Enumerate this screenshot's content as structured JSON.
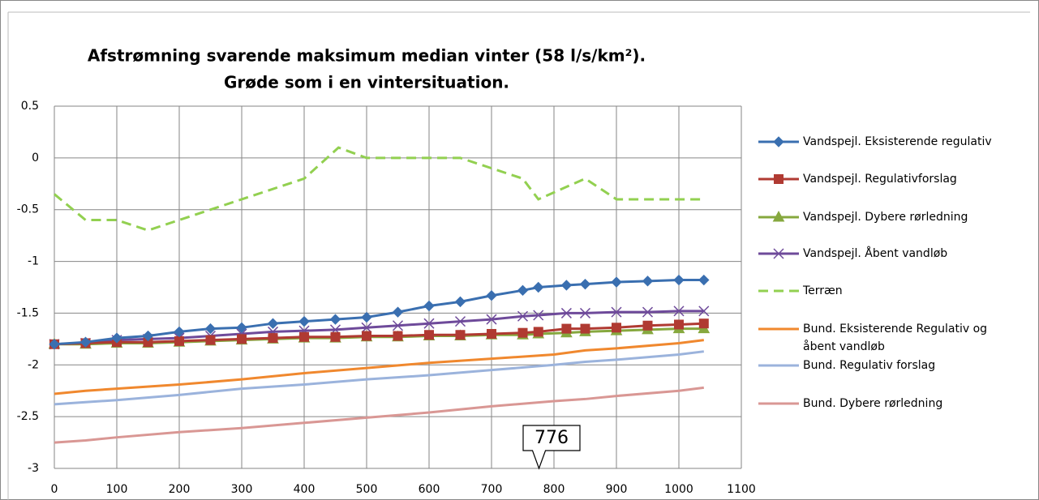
{
  "chart_data": {
    "type": "line",
    "title": [
      "Afstrømning svarende maksimum median vinter (58 l/s/km²).",
      "Grøde som i en vintersituation."
    ],
    "xlim": [
      0,
      1100
    ],
    "xticks": [
      0,
      100,
      200,
      300,
      400,
      500,
      600,
      700,
      800,
      900,
      1000,
      1100
    ],
    "ylim": [
      -3,
      0.5
    ],
    "yticks": [
      0.5,
      0,
      -0.5,
      -1,
      -1.5,
      -2,
      -2.5,
      -3
    ],
    "grid": true,
    "legend": "right",
    "callout": 776,
    "series": [
      {
        "name": "Vandspejl. Eksisterende regulativ",
        "color": "#3a6fb0",
        "marker": "diamond",
        "dash": false,
        "x": [
          0,
          50,
          100,
          150,
          200,
          250,
          300,
          350,
          400,
          450,
          500,
          550,
          600,
          650,
          700,
          750,
          775,
          820,
          850,
          900,
          950,
          1000,
          1040
        ],
        "values": [
          -1.8,
          -1.78,
          -1.74,
          -1.72,
          -1.68,
          -1.65,
          -1.64,
          -1.6,
          -1.58,
          -1.56,
          -1.54,
          -1.49,
          -1.43,
          -1.39,
          -1.33,
          -1.28,
          -1.25,
          -1.23,
          -1.22,
          -1.2,
          -1.19,
          -1.18,
          -1.18
        ]
      },
      {
        "name": "Vandspejl. Regulativforslag",
        "color": "#b03a32",
        "marker": "square",
        "dash": false,
        "x": [
          0,
          50,
          100,
          150,
          200,
          250,
          300,
          350,
          400,
          450,
          500,
          550,
          600,
          650,
          700,
          750,
          775,
          820,
          850,
          900,
          950,
          1000,
          1040
        ],
        "values": [
          -1.8,
          -1.79,
          -1.78,
          -1.78,
          -1.77,
          -1.76,
          -1.75,
          -1.74,
          -1.73,
          -1.73,
          -1.72,
          -1.72,
          -1.71,
          -1.71,
          -1.7,
          -1.69,
          -1.68,
          -1.65,
          -1.65,
          -1.64,
          -1.62,
          -1.61,
          -1.6
        ]
      },
      {
        "name": "Vandspejl. Dybere rørledning",
        "color": "#86a83e",
        "marker": "triangle",
        "dash": false,
        "x": [
          0,
          50,
          100,
          150,
          200,
          250,
          300,
          350,
          400,
          450,
          500,
          550,
          600,
          650,
          700,
          750,
          775,
          820,
          850,
          900,
          950,
          1000,
          1040
        ],
        "values": [
          -1.8,
          -1.8,
          -1.79,
          -1.79,
          -1.78,
          -1.77,
          -1.76,
          -1.75,
          -1.74,
          -1.74,
          -1.73,
          -1.73,
          -1.72,
          -1.72,
          -1.71,
          -1.71,
          -1.7,
          -1.69,
          -1.68,
          -1.67,
          -1.66,
          -1.65,
          -1.65
        ]
      },
      {
        "name": "Vandspejl. Åbent vandløb",
        "color": "#6e4a9a",
        "marker": "x",
        "dash": false,
        "x": [
          0,
          50,
          100,
          150,
          200,
          250,
          300,
          350,
          400,
          450,
          500,
          550,
          600,
          650,
          700,
          750,
          775,
          820,
          850,
          900,
          950,
          1000,
          1040
        ],
        "values": [
          -1.8,
          -1.79,
          -1.76,
          -1.75,
          -1.74,
          -1.72,
          -1.7,
          -1.68,
          -1.67,
          -1.66,
          -1.64,
          -1.62,
          -1.6,
          -1.58,
          -1.56,
          -1.53,
          -1.52,
          -1.5,
          -1.5,
          -1.49,
          -1.49,
          -1.48,
          -1.48
        ]
      },
      {
        "name": "Terræn",
        "color": "#92d050",
        "marker": "none",
        "dash": true,
        "x": [
          0,
          50,
          100,
          150,
          200,
          250,
          300,
          350,
          400,
          455,
          500,
          550,
          600,
          650,
          700,
          750,
          775,
          850,
          900,
          950,
          1000,
          1040
        ],
        "values": [
          -0.35,
          -0.6,
          -0.6,
          -0.7,
          -0.6,
          -0.5,
          -0.4,
          -0.3,
          -0.2,
          0.1,
          0,
          0,
          0,
          0,
          -0.1,
          -0.2,
          -0.4,
          -0.2,
          -0.4,
          -0.4,
          -0.4,
          -0.4
        ]
      },
      {
        "name": "Bund. Eksisterende Regulativ og åbent vandløb",
        "color": "#f0882e",
        "marker": "none",
        "dash": false,
        "x": [
          0,
          50,
          100,
          200,
          300,
          400,
          500,
          600,
          700,
          800,
          850,
          900,
          1000,
          1040
        ],
        "values": [
          -2.28,
          -2.25,
          -2.23,
          -2.19,
          -2.14,
          -2.08,
          -2.03,
          -1.98,
          -1.94,
          -1.9,
          -1.86,
          -1.84,
          -1.79,
          -1.76
        ]
      },
      {
        "name": "Bund. Regulativ forslag",
        "color": "#9bb3dc",
        "marker": "none",
        "dash": false,
        "x": [
          0,
          50,
          100,
          200,
          300,
          400,
          500,
          600,
          700,
          800,
          850,
          900,
          1000,
          1040
        ],
        "values": [
          -2.38,
          -2.36,
          -2.34,
          -2.29,
          -2.23,
          -2.19,
          -2.14,
          -2.1,
          -2.05,
          -2.0,
          -1.97,
          -1.95,
          -1.9,
          -1.87
        ]
      },
      {
        "name": "Bund. Dybere rørledning",
        "color": "#d99794",
        "marker": "none",
        "dash": false,
        "x": [
          0,
          50,
          100,
          200,
          300,
          400,
          500,
          600,
          700,
          800,
          850,
          900,
          1000,
          1040
        ],
        "values": [
          -2.75,
          -2.73,
          -2.7,
          -2.65,
          -2.61,
          -2.56,
          -2.51,
          -2.46,
          -2.4,
          -2.35,
          -2.33,
          -2.3,
          -2.25,
          -2.22
        ]
      }
    ]
  }
}
